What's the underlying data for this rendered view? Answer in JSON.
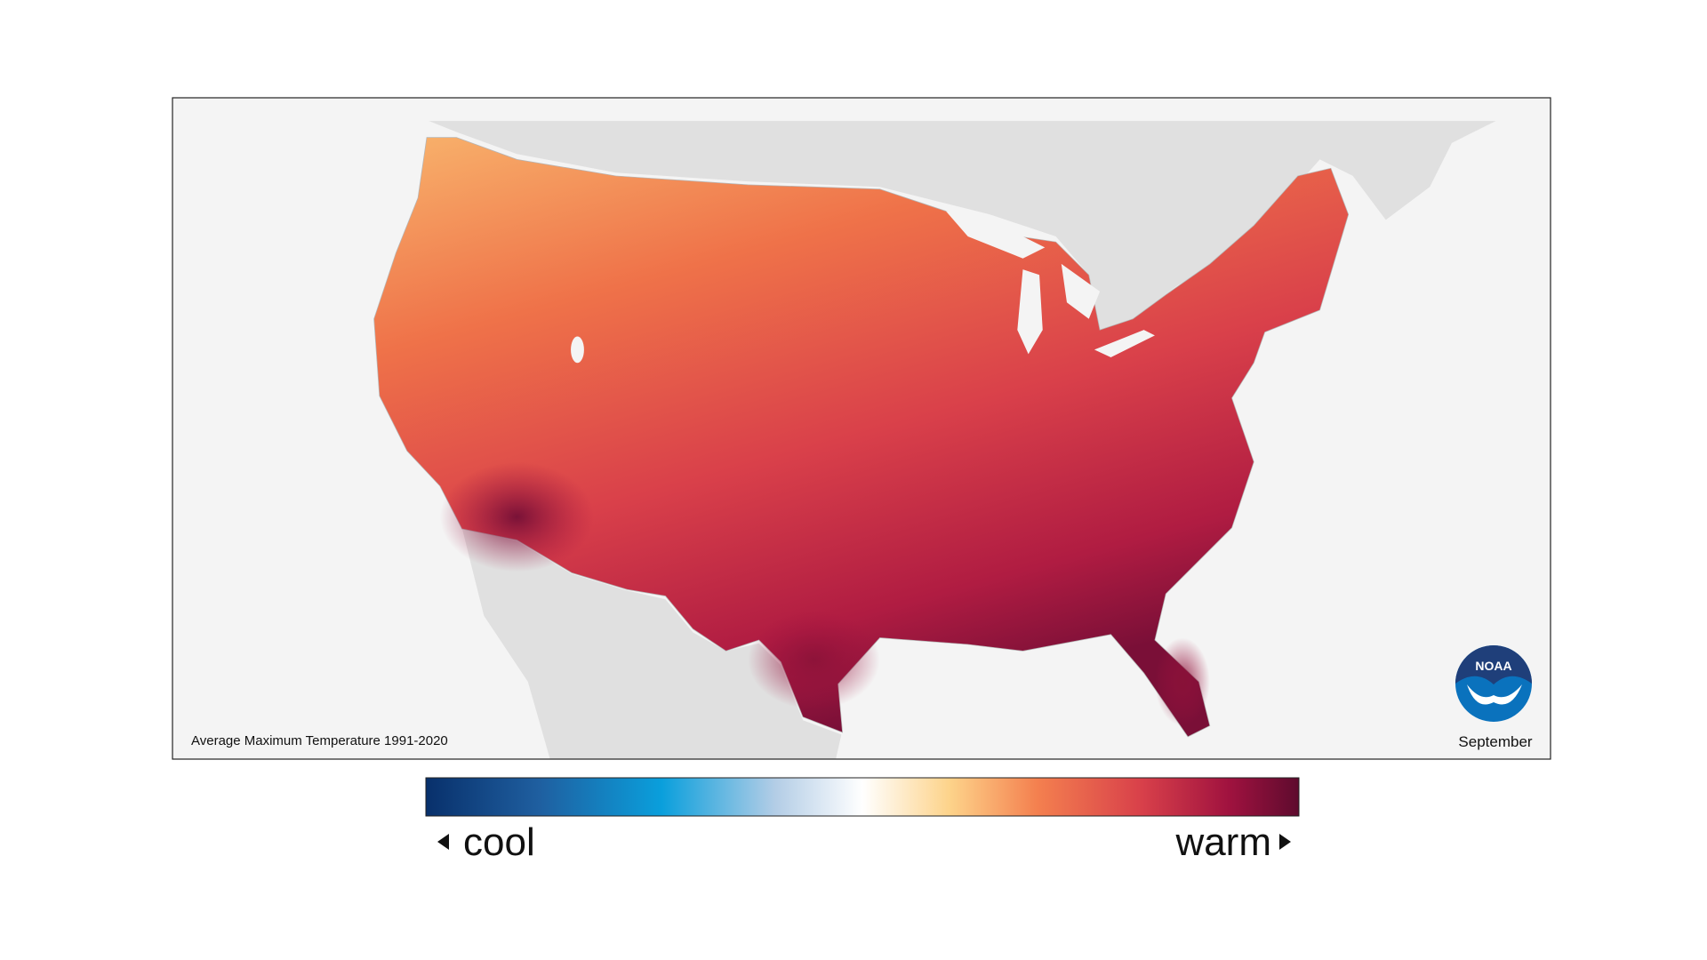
{
  "map": {
    "title": "Average Maximum Temperature 1991-2020",
    "period": "September",
    "logo": "NOAA"
  },
  "legend": {
    "low_label": "cool",
    "high_label": "warm"
  }
}
